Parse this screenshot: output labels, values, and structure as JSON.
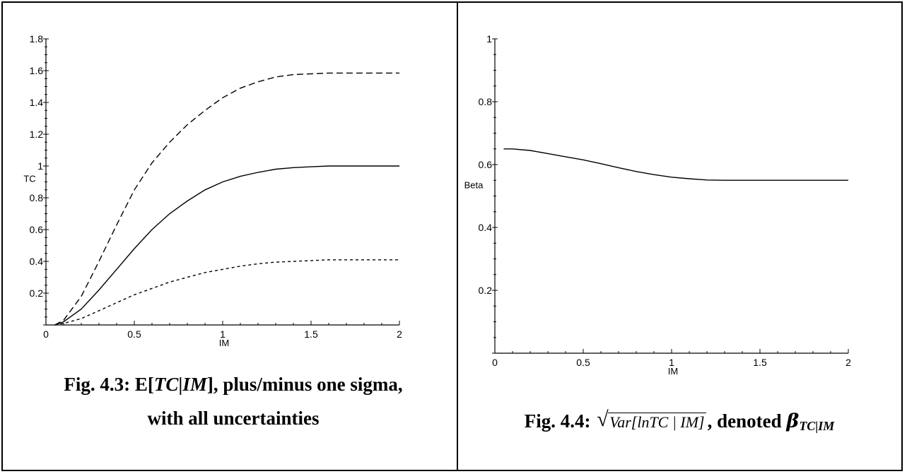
{
  "charts": [
    {
      "caption_num": "Fig. 4.3:",
      "caption_pre": "E[",
      "caption_tc": "TC",
      "caption_bar": "|",
      "caption_im": "IM",
      "caption_post": "], plus/minus one sigma,",
      "caption_line2": "with all uncertainties"
    },
    {
      "caption_num": "Fig. 4.4:",
      "caption_sqrt": "Var[lnTC | IM]",
      "caption_mid": ", denoted",
      "caption_beta": "β",
      "caption_sub": "TC|IM"
    }
  ],
  "chart_data": [
    {
      "type": "line",
      "xlabel": "IM",
      "ylabel": "TC",
      "xlim": [
        0,
        2
      ],
      "ylim": [
        0,
        1.8
      ],
      "xticks": [
        "0",
        "0.5",
        "1",
        "1.5",
        "2"
      ],
      "yticks": [
        "0.2",
        "0.4",
        "0.6",
        "0.8",
        "1",
        "1.2",
        "1.4",
        "1.6",
        "1.8"
      ],
      "series": [
        {
          "style": "dashed",
          "x": [
            0.05,
            0.1,
            0.2,
            0.3,
            0.4,
            0.5,
            0.6,
            0.7,
            0.8,
            0.9,
            1.0,
            1.1,
            1.2,
            1.3,
            1.4,
            1.5,
            1.6,
            1.7,
            1.8,
            1.9,
            2.0
          ],
          "y": [
            0.0,
            0.03,
            0.18,
            0.4,
            0.63,
            0.85,
            1.02,
            1.15,
            1.26,
            1.35,
            1.43,
            1.49,
            1.53,
            1.56,
            1.575,
            1.58,
            1.585,
            1.585,
            1.585,
            1.585,
            1.585
          ]
        },
        {
          "style": "solid",
          "x": [
            0.05,
            0.1,
            0.2,
            0.3,
            0.4,
            0.5,
            0.6,
            0.7,
            0.8,
            0.9,
            1.0,
            1.1,
            1.2,
            1.3,
            1.4,
            1.5,
            1.6,
            1.7,
            1.8,
            1.9,
            2.0
          ],
          "y": [
            0.0,
            0.02,
            0.1,
            0.22,
            0.35,
            0.48,
            0.6,
            0.7,
            0.78,
            0.85,
            0.9,
            0.935,
            0.96,
            0.98,
            0.99,
            0.995,
            1.0,
            1.0,
            1.0,
            1.0,
            1.0
          ]
        },
        {
          "style": "dotted",
          "x": [
            0.05,
            0.1,
            0.2,
            0.3,
            0.4,
            0.5,
            0.6,
            0.7,
            0.8,
            0.9,
            1.0,
            1.1,
            1.2,
            1.3,
            1.4,
            1.5,
            1.6,
            1.7,
            1.8,
            1.9,
            2.0
          ],
          "y": [
            0.0,
            0.01,
            0.04,
            0.09,
            0.14,
            0.19,
            0.23,
            0.27,
            0.3,
            0.33,
            0.35,
            0.37,
            0.385,
            0.395,
            0.4,
            0.405,
            0.41,
            0.41,
            0.41,
            0.41,
            0.41
          ]
        }
      ]
    },
    {
      "type": "line",
      "xlabel": "IM",
      "ylabel": "Beta",
      "xlim": [
        0,
        2
      ],
      "ylim": [
        0,
        1
      ],
      "xticks": [
        "0",
        "0.5",
        "1",
        "1.5",
        "2"
      ],
      "yticks": [
        "0.2",
        "0.4",
        "0.6",
        "0.8",
        "1"
      ],
      "series": [
        {
          "style": "solid",
          "x": [
            0.05,
            0.1,
            0.2,
            0.3,
            0.4,
            0.5,
            0.6,
            0.7,
            0.8,
            0.9,
            1.0,
            1.1,
            1.2,
            1.3,
            1.4,
            1.5,
            1.6,
            1.7,
            1.8,
            1.9,
            2.0
          ],
          "y": [
            0.65,
            0.65,
            0.645,
            0.635,
            0.625,
            0.615,
            0.603,
            0.59,
            0.578,
            0.568,
            0.56,
            0.555,
            0.551,
            0.55,
            0.55,
            0.55,
            0.55,
            0.55,
            0.55,
            0.55,
            0.55
          ]
        }
      ]
    }
  ]
}
